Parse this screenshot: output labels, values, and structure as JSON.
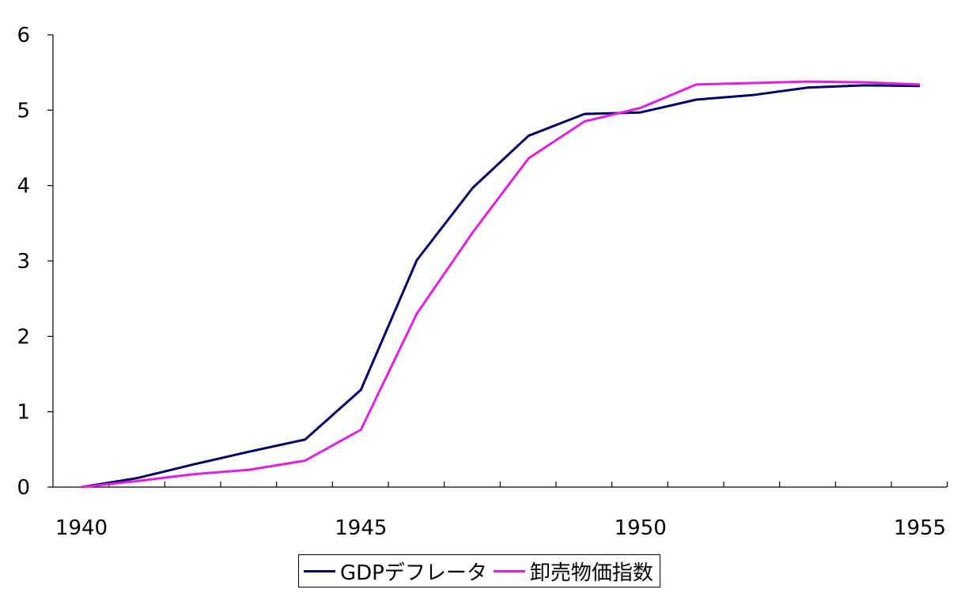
{
  "chart_data": {
    "type": "line",
    "title": "",
    "xlabel": "",
    "ylabel": "",
    "xlim": [
      1940,
      1955
    ],
    "ylim": [
      0,
      6
    ],
    "x_ticks": [
      "1940",
      "1945",
      "1950",
      "1955"
    ],
    "y_ticks": [
      "0",
      "1",
      "2",
      "3",
      "4",
      "5",
      "6"
    ],
    "grid": false,
    "legend_position": "bottom",
    "x": [
      1940,
      1941,
      1942,
      1943,
      1944,
      1945,
      1946,
      1947,
      1948,
      1949,
      1950,
      1951,
      1952,
      1953,
      1954,
      1955
    ],
    "series": [
      {
        "name": "GDPデフレータ",
        "color": "#000066",
        "values": [
          0.0,
          0.12,
          0.3,
          0.47,
          0.63,
          1.29,
          3.01,
          3.97,
          4.66,
          4.95,
          4.97,
          5.14,
          5.2,
          5.3,
          5.33,
          5.32
        ]
      },
      {
        "name": "卸売物価指数",
        "color": "#e020e0",
        "values": [
          0.0,
          0.08,
          0.17,
          0.23,
          0.35,
          0.76,
          2.3,
          3.38,
          4.36,
          4.85,
          5.03,
          5.34,
          5.36,
          5.38,
          5.37,
          5.34
        ]
      }
    ]
  }
}
